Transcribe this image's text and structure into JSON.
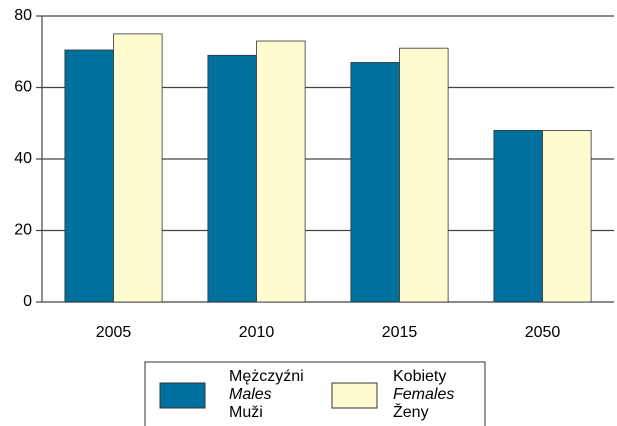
{
  "chart_data": {
    "type": "bar",
    "categories": [
      "2005",
      "2010",
      "2015",
      "2050"
    ],
    "series": [
      {
        "name": [
          "Mężczyźni",
          "Males",
          "Muži"
        ],
        "color": "#00709f",
        "values": [
          70.5,
          69,
          67,
          48
        ]
      },
      {
        "name": [
          "Kobiety",
          "Females",
          "Ženy"
        ],
        "color": "#fffbd0",
        "values": [
          75,
          73,
          71,
          48
        ]
      }
    ],
    "ylim": [
      0,
      80
    ],
    "yticks": [
      0,
      20,
      40,
      60,
      80
    ],
    "grid": true,
    "legend": "bottom"
  }
}
